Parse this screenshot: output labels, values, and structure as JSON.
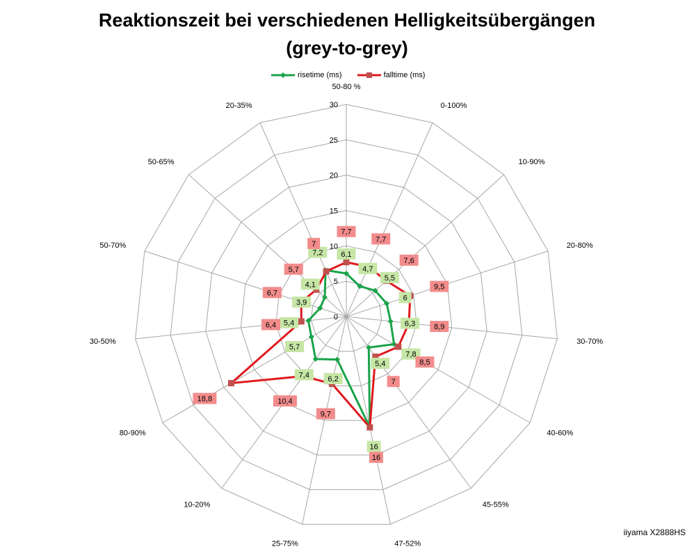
{
  "chart_data": {
    "type": "radar",
    "title": "Reaktionszeit bei verschiedenen Helligkeitsübergängen",
    "subtitle": "(grey-to-grey)",
    "categories": [
      "50-80 %",
      "0-100%",
      "10-90%",
      "20-80%",
      "30-70%",
      "40-60%",
      "45-55%",
      "47-52%",
      "25-75%",
      "10-20%",
      "80-90%",
      "30-50%",
      "50-70%",
      "50-65%",
      "20-35%"
    ],
    "radial_axis": {
      "min": 0,
      "max": 30,
      "step": 5,
      "tick_labels": [
        "0",
        "5",
        "10",
        "15",
        "20",
        "25",
        "30"
      ]
    },
    "grid": true,
    "legend_position": "top",
    "series": [
      {
        "name": "risetime (ms)",
        "color": "#1aa34a",
        "label_bg": "#c6e6a6",
        "values": [
          6.1,
          4.7,
          5.5,
          6,
          6.3,
          7.8,
          5.4,
          16,
          6.2,
          7.4,
          5.7,
          5.4,
          3.9,
          4.1,
          7.2
        ],
        "labels": [
          "6,1",
          "4,7",
          "5,5",
          "6",
          "6,3",
          "7,8",
          "5,4",
          "16",
          "6,2",
          "7,4",
          "5,7",
          "5,4",
          "3,9",
          "4,1",
          "7,2"
        ]
      },
      {
        "name": "falltime (ms)",
        "color": "#e0191e",
        "label_bg": "#f28c8c",
        "values": [
          7.7,
          7.7,
          7.6,
          9.5,
          8.9,
          8.5,
          7,
          16,
          9.7,
          10.4,
          18.8,
          6.4,
          6.7,
          5.7,
          7
        ],
        "labels": [
          "7,7",
          "7,7",
          "7,6",
          "9,5",
          "8,9",
          "8,5",
          "7",
          "16",
          "9,7",
          "10,4",
          "18,8",
          "6,4",
          "6,7",
          "5,7",
          "7"
        ]
      }
    ]
  },
  "footer_text": "iiyama X2888HS"
}
